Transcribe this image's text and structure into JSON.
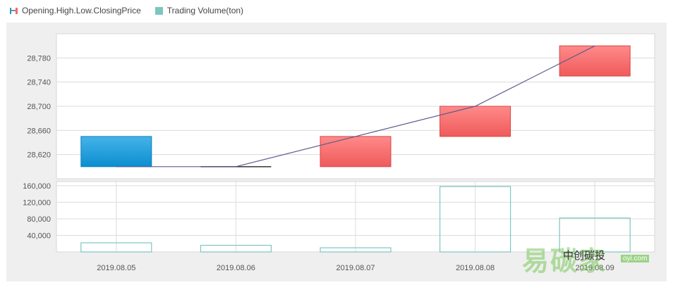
{
  "legend": {
    "price_label": "Opening.High.Low.ClosingPrice",
    "volume_label": "Trading Volume(ton)"
  },
  "colors": {
    "up": "#f26a6a",
    "down": "#1c9ad6",
    "volume": "#7cc6c0",
    "line": "#5b5b8c"
  },
  "chart_data": [
    {
      "type": "candlestick",
      "title": "",
      "categories": [
        "2019.08.05",
        "2019.08.06",
        "2019.08.07",
        "2019.08.08",
        "2019.08.09"
      ],
      "series": [
        {
          "name": "Opening.High.Low.ClosingPrice",
          "open": [
            28650,
            28600,
            28600,
            28650,
            28750
          ],
          "close": [
            28600,
            28600,
            28650,
            28700,
            28800
          ],
          "high": [
            28650,
            28600,
            28650,
            28700,
            28800
          ],
          "low": [
            28600,
            28600,
            28600,
            28650,
            28750
          ]
        }
      ],
      "line": [
        28600,
        28600,
        28650,
        28700,
        28800
      ],
      "yticks": [
        28620,
        28660,
        28700,
        28740,
        28780
      ],
      "ylim": [
        28580,
        28820
      ],
      "grid": true
    },
    {
      "type": "bar",
      "title": "",
      "categories": [
        "2019.08.05",
        "2019.08.06",
        "2019.08.07",
        "2019.08.08",
        "2019.08.09"
      ],
      "series": [
        {
          "name": "Trading Volume(ton)",
          "values": [
            22000,
            16000,
            10000,
            158000,
            82000
          ]
        }
      ],
      "yticks": [
        40000,
        80000,
        120000,
        160000
      ],
      "ylim": [
        0,
        170000
      ],
      "grid": true
    }
  ],
  "watermark": {
    "big": "易碳家",
    "small": "中创碳投",
    "url": "oyi.com"
  }
}
